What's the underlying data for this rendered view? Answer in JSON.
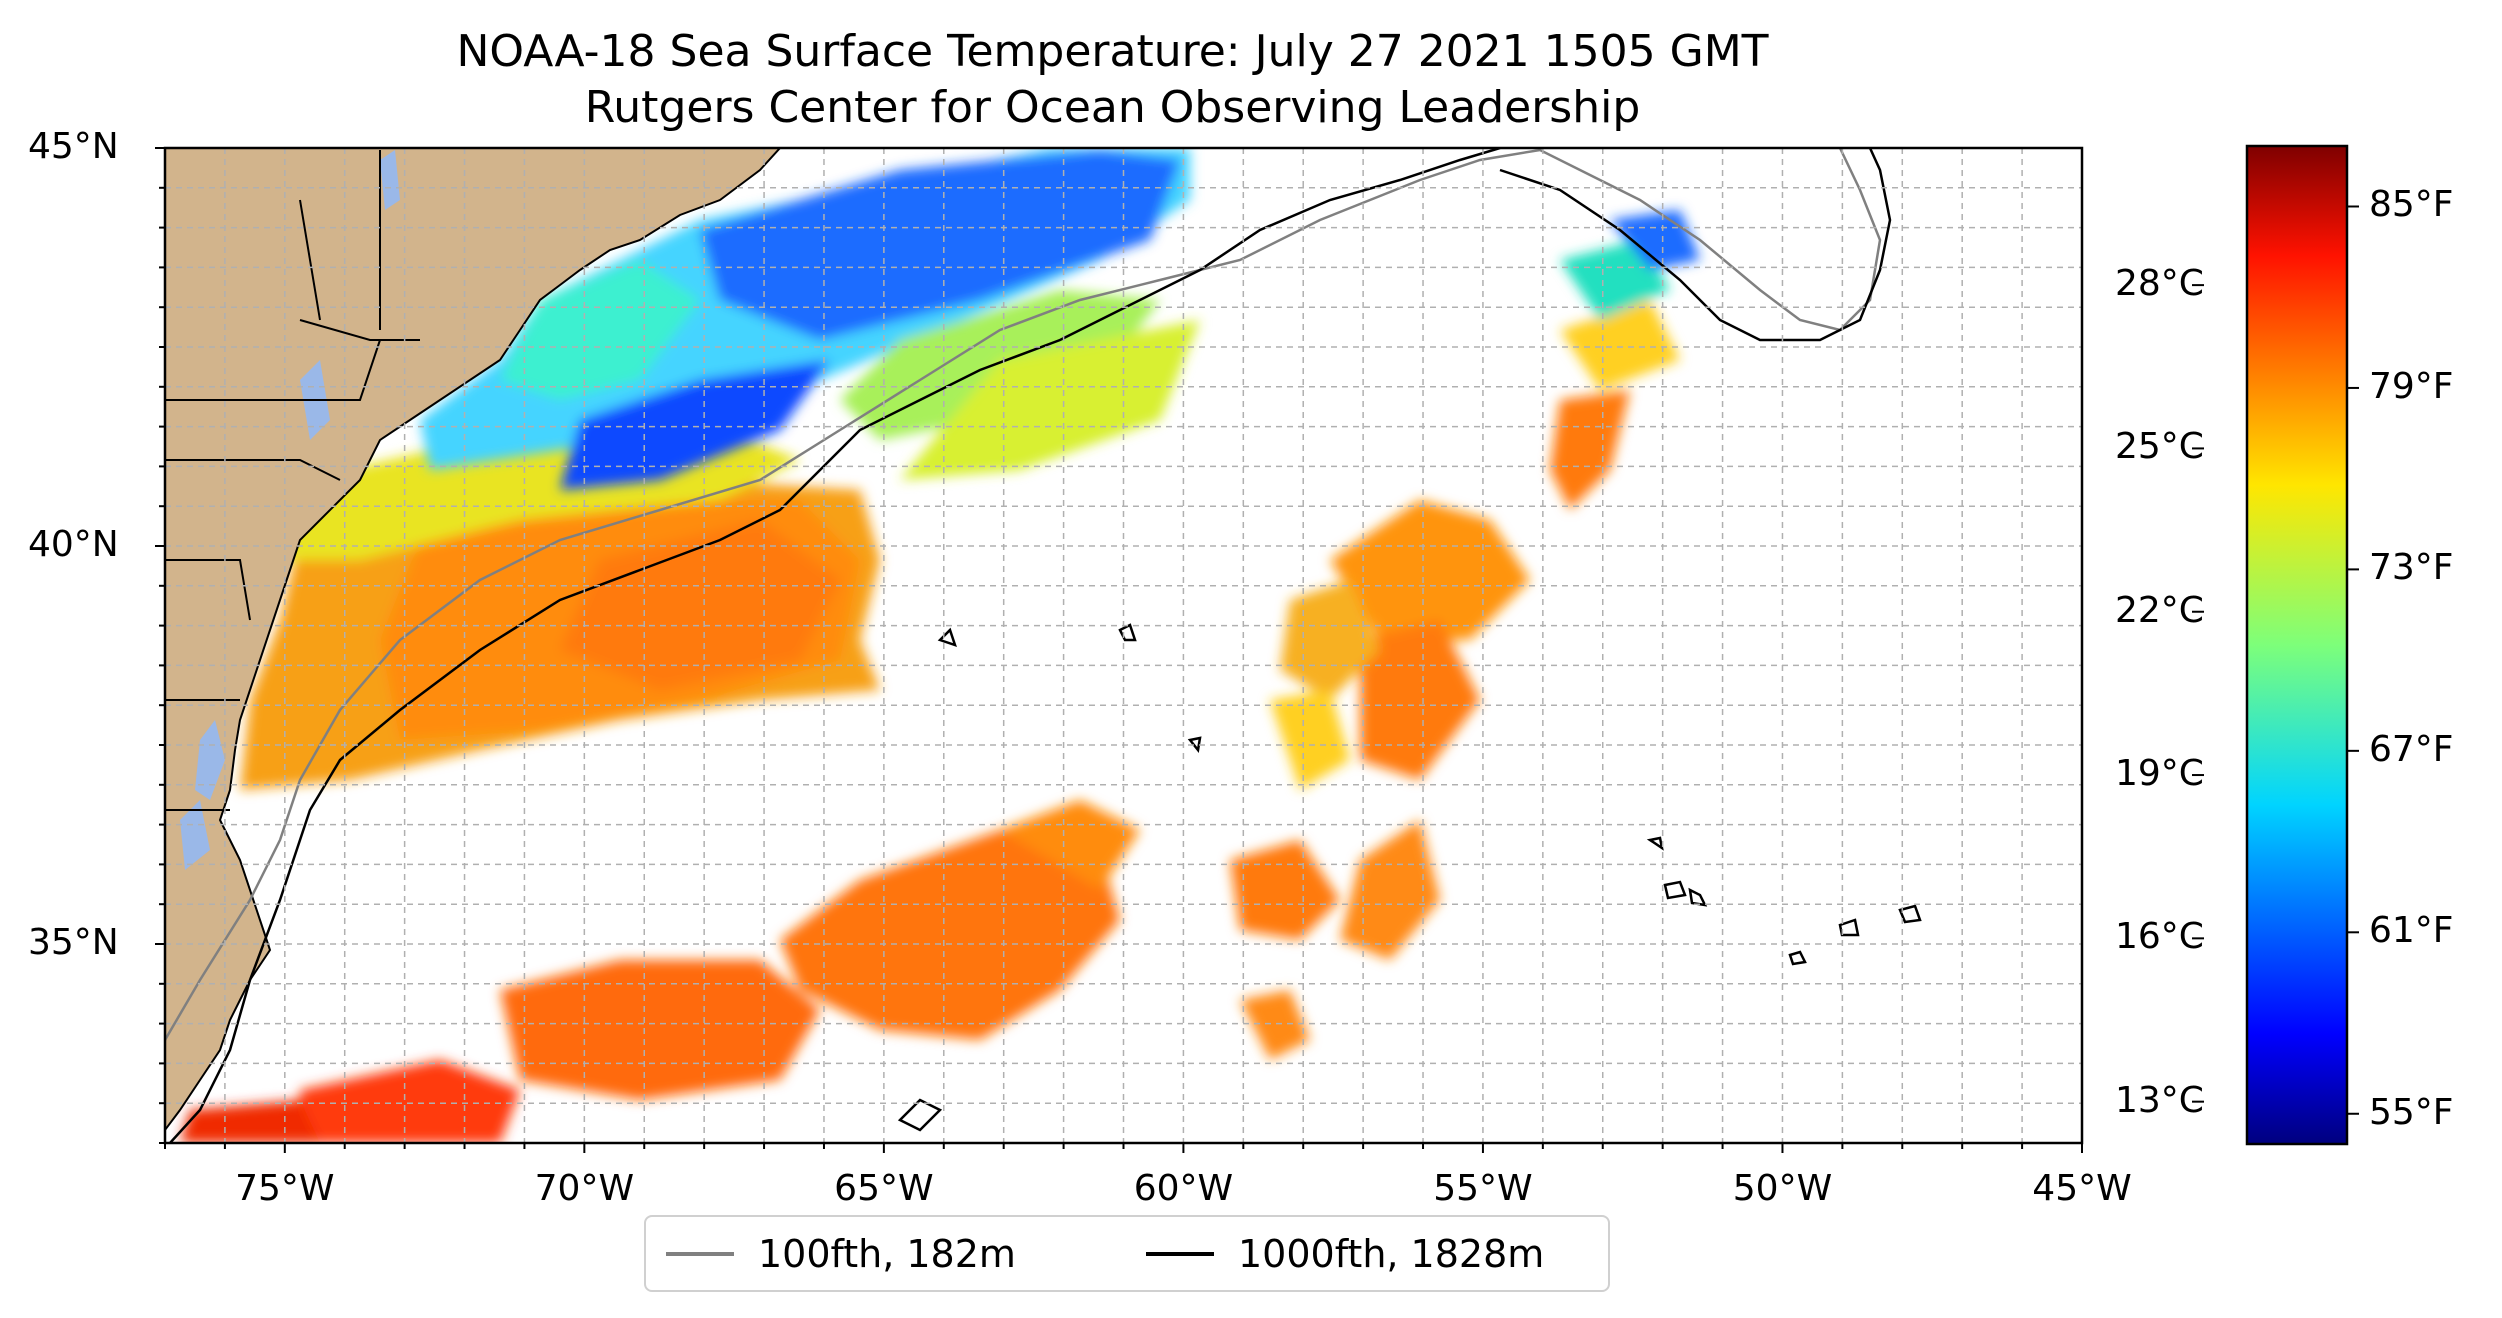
{
  "title": {
    "line1": "NOAA-18 Sea Surface Temperature: July 27 2021 1505 GMT",
    "line2": "Rutgers Center for Ocean Observing Leadership"
  },
  "map": {
    "lon_range": [
      -77,
      -45
    ],
    "lat_range": [
      32.5,
      45
    ],
    "land_color": "#d2b48c",
    "lake_color": "#9ab8e8",
    "x_ticks": [
      {
        "lon": -75,
        "label": "75°W"
      },
      {
        "lon": -70,
        "label": "70°W"
      },
      {
        "lon": -65,
        "label": "65°W"
      },
      {
        "lon": -60,
        "label": "60°W"
      },
      {
        "lon": -55,
        "label": "55°W"
      },
      {
        "lon": -50,
        "label": "50°W"
      },
      {
        "lon": -45,
        "label": "45°W"
      }
    ],
    "y_ticks": [
      {
        "lat": 35,
        "label": "35°N"
      },
      {
        "lat": 40,
        "label": "40°N"
      },
      {
        "lat": 45,
        "label": "45°N"
      }
    ]
  },
  "legend": {
    "items": [
      {
        "label": "100fth, 182m",
        "color": "#808080"
      },
      {
        "label": "1000fth, 1828m",
        "color": "#000000"
      }
    ]
  },
  "colorbar": {
    "colormap": "jet",
    "range_f": [
      54,
      87
    ],
    "fahrenheit_ticks": [
      {
        "value": 55,
        "label": "55°F"
      },
      {
        "value": 61,
        "label": "61°F"
      },
      {
        "value": 67,
        "label": "67°F"
      },
      {
        "value": 73,
        "label": "73°F"
      },
      {
        "value": 79,
        "label": "79°F"
      },
      {
        "value": 85,
        "label": "85°F"
      }
    ],
    "celsius_ticks": [
      {
        "value": 13,
        "label": "13°C"
      },
      {
        "value": 16,
        "label": "16°C"
      },
      {
        "value": 19,
        "label": "19°C"
      },
      {
        "value": 22,
        "label": "22°C"
      },
      {
        "value": 25,
        "label": "25°C"
      },
      {
        "value": 28,
        "label": "28°C"
      }
    ]
  }
}
